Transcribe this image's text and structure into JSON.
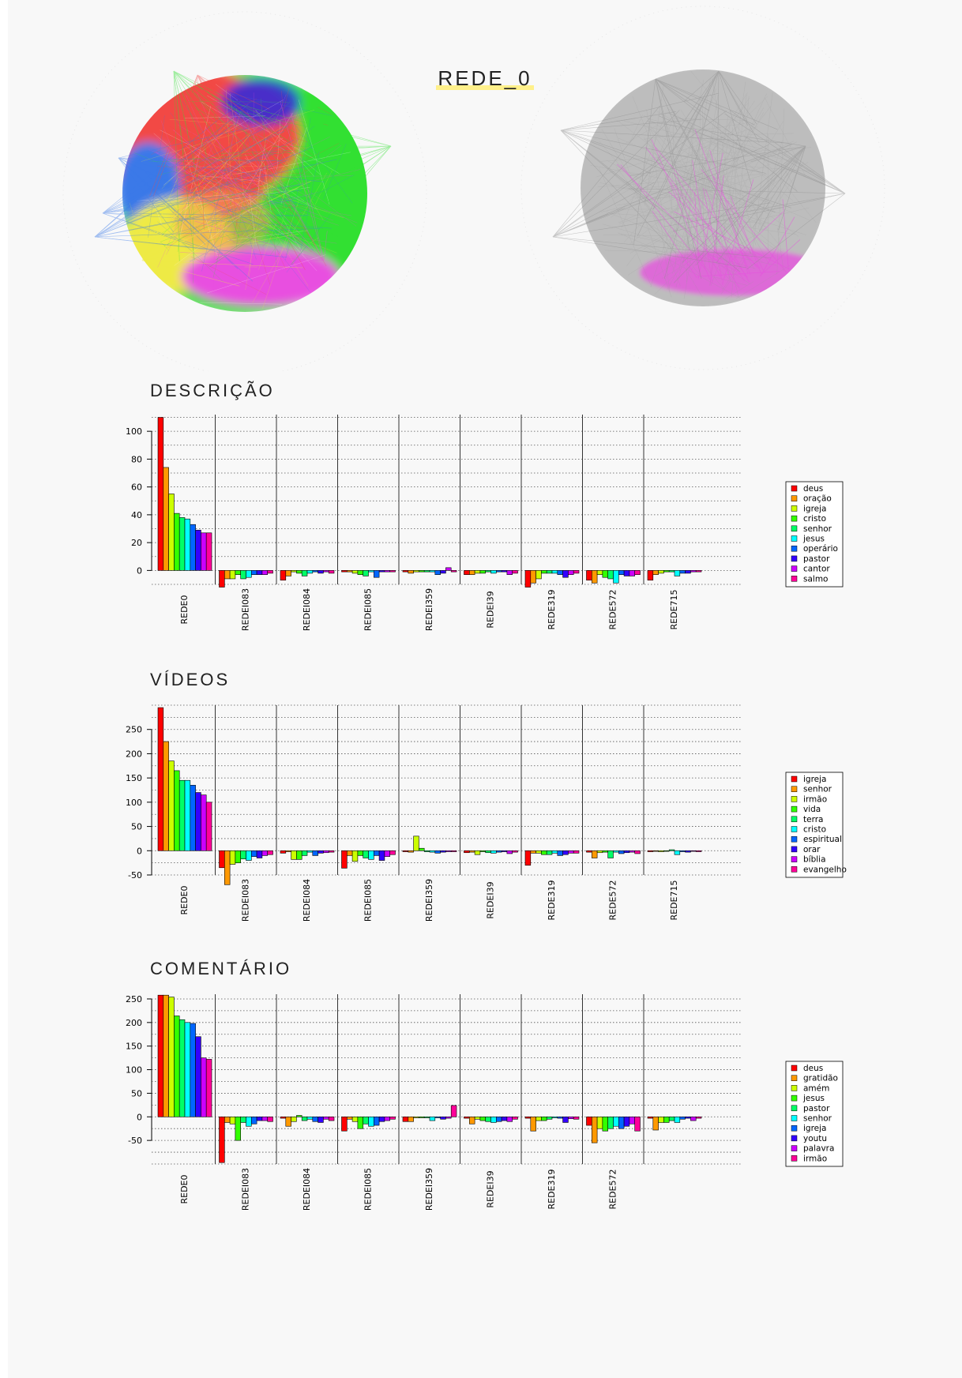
{
  "main_title": "REDE_0",
  "network_colors": {
    "red": "#f24a45",
    "green": "#33e033",
    "blue": "#3a79e8",
    "yellow": "#eeea44",
    "magenta": "#e84fe0",
    "navy": "#2a2ae0",
    "gray": "#bdbdbd"
  },
  "chart_data": [
    {
      "type": "bar",
      "title": "DESCRIÇÃO",
      "categories": [
        "REDE0",
        "REDEI083",
        "REDEI084",
        "REDEI085",
        "REDEI359",
        "REDEI39",
        "REDE319",
        "REDE572",
        "REDE715"
      ],
      "series": [
        {
          "name": "deus",
          "color": "#ff0000",
          "values": [
            110,
            -12,
            -7,
            -1,
            -1,
            -3,
            -12,
            -7,
            -7
          ]
        },
        {
          "name": "oração",
          "color": "#ff9900",
          "values": [
            74,
            -6,
            -4,
            -1,
            -2,
            -3,
            -9,
            -9,
            -3
          ]
        },
        {
          "name": "igreja",
          "color": "#ccff00",
          "values": [
            55,
            -6,
            -1,
            -2,
            -1,
            -2,
            -6,
            -3,
            -2
          ]
        },
        {
          "name": "cristo",
          "color": "#33ff00",
          "values": [
            41,
            -3,
            -2,
            -3,
            -1,
            -2,
            -2,
            -5,
            -1
          ]
        },
        {
          "name": "senhor",
          "color": "#00ff66",
          "values": [
            38,
            -6,
            -4,
            -4,
            -1,
            -1,
            -2,
            -6,
            -1
          ]
        },
        {
          "name": "jesus",
          "color": "#00ffff",
          "values": [
            37,
            -5,
            -2,
            -1,
            -1,
            -2,
            -2,
            -9,
            -4
          ]
        },
        {
          "name": "operário",
          "color": "#0066ff",
          "values": [
            33,
            -3,
            -1,
            -5,
            -3,
            -1,
            -3,
            -3,
            -2
          ]
        },
        {
          "name": "pastor",
          "color": "#3300ff",
          "values": [
            29,
            -3,
            -2,
            -1,
            -2,
            -1,
            -5,
            -4,
            -2
          ]
        },
        {
          "name": "cantor",
          "color": "#cc00ff",
          "values": [
            27,
            -3,
            -1,
            -1,
            2,
            -3,
            -3,
            -4,
            -1
          ]
        },
        {
          "name": "salmo",
          "color": "#ff0099",
          "values": [
            27,
            -2,
            -2,
            -1,
            -1,
            -2,
            -2,
            -3,
            -1
          ]
        }
      ],
      "ylim": [
        -10,
        112
      ],
      "yticks": [
        0,
        20,
        40,
        60,
        80,
        100
      ],
      "grid": true,
      "legend": "right"
    },
    {
      "type": "bar",
      "title": "VÍDEOS",
      "categories": [
        "REDE0",
        "REDEI083",
        "REDEI084",
        "REDEI085",
        "REDEI359",
        "REDEI39",
        "REDE319",
        "REDE572",
        "REDE715"
      ],
      "series": [
        {
          "name": "igreja",
          "color": "#ff0000",
          "values": [
            295,
            -35,
            -5,
            -36,
            -2,
            -4,
            -30,
            -3,
            -2
          ]
        },
        {
          "name": "senhor",
          "color": "#ff9900",
          "values": [
            225,
            -70,
            -2,
            -10,
            -3,
            -3,
            -5,
            -15,
            -1
          ]
        },
        {
          "name": "irmão",
          "color": "#ccff00",
          "values": [
            185,
            -28,
            -18,
            -22,
            30,
            -8,
            -5,
            -4,
            -2
          ]
        },
        {
          "name": "vida",
          "color": "#33ff00",
          "values": [
            165,
            -25,
            -18,
            -10,
            5,
            -2,
            -8,
            -3,
            -1
          ]
        },
        {
          "name": "terra",
          "color": "#00ff66",
          "values": [
            145,
            -17,
            -10,
            -15,
            -2,
            -4,
            -8,
            -15,
            2
          ]
        },
        {
          "name": "cristo",
          "color": "#00ffff",
          "values": [
            145,
            -20,
            -3,
            -18,
            -3,
            -5,
            -5,
            -3,
            -8
          ]
        },
        {
          "name": "espiritual",
          "color": "#0066ff",
          "values": [
            135,
            -12,
            -10,
            -10,
            -5,
            -3,
            -10,
            -6,
            -2
          ]
        },
        {
          "name": "orar",
          "color": "#3300ff",
          "values": [
            120,
            -15,
            -5,
            -20,
            -3,
            -2,
            -8,
            -4,
            -3
          ]
        },
        {
          "name": "bíblia",
          "color": "#cc00ff",
          "values": [
            115,
            -10,
            -4,
            -12,
            -2,
            -6,
            -5,
            -3,
            -1
          ]
        },
        {
          "name": "evangelho",
          "color": "#ff0099",
          "values": [
            100,
            -8,
            -3,
            -8,
            -2,
            -3,
            -5,
            -6,
            -2
          ]
        }
      ],
      "ylim": [
        -50,
        300
      ],
      "yticks": [
        -50,
        0,
        50,
        100,
        150,
        200,
        250
      ],
      "grid": true,
      "legend": "right"
    },
    {
      "type": "bar",
      "title": "COMENTÁRIO",
      "categories": [
        "REDE0",
        "REDEI083",
        "REDEI084",
        "REDEI085",
        "REDEI359",
        "REDEI39",
        "REDE319",
        "REDE572",
        ""
      ],
      "series": [
        {
          "name": "deus",
          "color": "#ff0000",
          "values": [
            258,
            -97,
            -3,
            -30,
            -10,
            -3,
            -3,
            -18,
            -3
          ]
        },
        {
          "name": "gratidão",
          "color": "#ff9900",
          "values": [
            258,
            -12,
            -20,
            -5,
            -10,
            -15,
            -30,
            -55,
            -28
          ]
        },
        {
          "name": "amém",
          "color": "#ccff00",
          "values": [
            254,
            -15,
            -10,
            -10,
            -2,
            -5,
            -8,
            -25,
            -12
          ]
        },
        {
          "name": "jesus",
          "color": "#33ff00",
          "values": [
            214,
            -50,
            3,
            -25,
            -2,
            -8,
            -8,
            -30,
            -12
          ]
        },
        {
          "name": "pastor",
          "color": "#00ff66",
          "values": [
            206,
            -12,
            -8,
            -15,
            -2,
            -10,
            -5,
            -25,
            -8
          ]
        },
        {
          "name": "senhor",
          "color": "#00ffff",
          "values": [
            200,
            -20,
            -5,
            -20,
            -8,
            -12,
            -2,
            -20,
            -12
          ]
        },
        {
          "name": "igreja",
          "color": "#0066ff",
          "values": [
            198,
            -15,
            -10,
            -18,
            -2,
            -10,
            -3,
            -25,
            -5
          ]
        },
        {
          "name": "youtu",
          "color": "#3300ff",
          "values": [
            170,
            -8,
            -12,
            -10,
            -5,
            -8,
            -12,
            -20,
            -3
          ]
        },
        {
          "name": "palavra",
          "color": "#cc00ff",
          "values": [
            125,
            -8,
            -5,
            -8,
            -3,
            -10,
            -4,
            -15,
            -8
          ]
        },
        {
          "name": "irmão",
          "color": "#ff0099",
          "values": [
            122,
            -10,
            -8,
            -5,
            24,
            -5,
            -5,
            -30,
            -3
          ]
        }
      ],
      "ylim": [
        -100,
        260
      ],
      "yticks": [
        -50,
        0,
        50,
        100,
        150,
        200,
        250
      ],
      "grid": true,
      "legend": "right"
    }
  ]
}
